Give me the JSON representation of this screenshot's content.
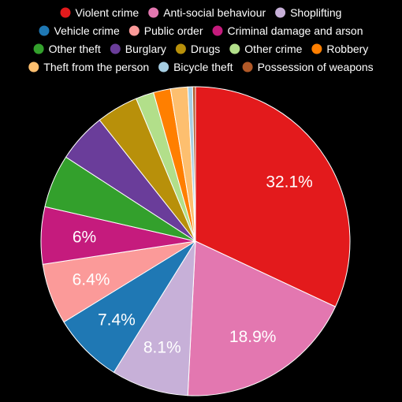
{
  "chart_data": {
    "type": "pie",
    "title": "",
    "series": [
      {
        "name": "Violent crime",
        "value": 32.1,
        "label": "32.1%",
        "color": "#e31a1c"
      },
      {
        "name": "Anti-social behaviour",
        "value": 18.9,
        "label": "18.9%",
        "color": "#e377b0"
      },
      {
        "name": "Shoplifting",
        "value": 8.1,
        "label": "8.1%",
        "color": "#c7b0d8"
      },
      {
        "name": "Vehicle crime",
        "value": 7.4,
        "label": "7.4%",
        "color": "#1f78b4"
      },
      {
        "name": "Public order",
        "value": 6.4,
        "label": "6.4%",
        "color": "#fb9a99"
      },
      {
        "name": "Criminal damage and arson",
        "value": 6.0,
        "label": "6%",
        "color": "#c51b7d"
      },
      {
        "name": "Other theft",
        "value": 5.6,
        "label": "",
        "color": "#33a02c"
      },
      {
        "name": "Burglary",
        "value": 5.2,
        "label": "",
        "color": "#6a3d9a"
      },
      {
        "name": "Drugs",
        "value": 4.4,
        "label": "",
        "color": "#b8900a"
      },
      {
        "name": "Other crime",
        "value": 1.9,
        "label": "",
        "color": "#b2df8a"
      },
      {
        "name": "Robbery",
        "value": 1.8,
        "label": "",
        "color": "#ff7f00"
      },
      {
        "name": "Theft from the person",
        "value": 1.8,
        "label": "",
        "color": "#fdbf6f"
      },
      {
        "name": "Bicycle theft",
        "value": 0.5,
        "label": "",
        "color": "#a6cee3"
      },
      {
        "name": "Possession of weapons",
        "value": 0.3,
        "label": "",
        "color": "#b15928"
      }
    ],
    "legend_placement": "top",
    "background": "#000000",
    "start_angle": "12 o'clock",
    "direction": "clockwise"
  }
}
